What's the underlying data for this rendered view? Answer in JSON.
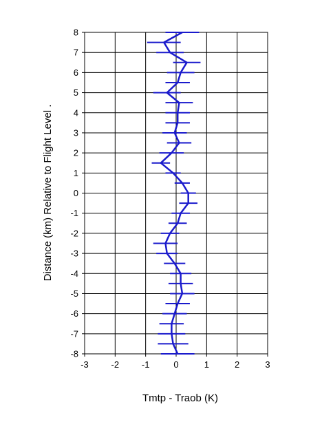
{
  "chart_data": {
    "type": "line",
    "xlabel": "Tmtp - Traob (K)",
    "ylabel": "Distance  (km) Relative to Flight Level .",
    "xlim": [
      -3,
      3
    ],
    "ylim": [
      -8,
      8
    ],
    "x_ticks": [
      "-3",
      "-2",
      "-1",
      "0",
      "1",
      "2",
      "3"
    ],
    "y_ticks": [
      "8",
      "7",
      "6",
      "5",
      "4",
      "3",
      "2",
      "1",
      "0",
      "-1",
      "-2",
      "-3",
      "-4",
      "-5",
      "-6",
      "-7",
      "-8"
    ],
    "grid": true,
    "line_color": "#1a1acc",
    "series": [
      {
        "points": [
          {
            "y": 8.0,
            "x": 0.2,
            "err": 0.55
          },
          {
            "y": 7.5,
            "x": -0.4,
            "err": 0.55
          },
          {
            "y": 7.0,
            "x": -0.2,
            "err": 0.45
          },
          {
            "y": 6.5,
            "x": 0.35,
            "err": 0.45
          },
          {
            "y": 6.0,
            "x": 0.15,
            "err": 0.45
          },
          {
            "y": 5.5,
            "x": 0.05,
            "err": 0.4
          },
          {
            "y": 5.0,
            "x": -0.3,
            "err": 0.45
          },
          {
            "y": 4.5,
            "x": 0.1,
            "err": 0.45
          },
          {
            "y": 4.0,
            "x": 0.05,
            "err": 0.4
          },
          {
            "y": 3.5,
            "x": 0.05,
            "err": 0.4
          },
          {
            "y": 3.0,
            "x": -0.05,
            "err": 0.4
          },
          {
            "y": 2.5,
            "x": 0.1,
            "err": 0.4
          },
          {
            "y": 2.0,
            "x": -0.15,
            "err": 0.4
          },
          {
            "y": 1.5,
            "x": -0.5,
            "err": 0.3
          },
          {
            "y": 1.0,
            "x": -0.1,
            "err": 0.25
          },
          {
            "y": 0.5,
            "x": 0.2,
            "err": 0.25
          },
          {
            "y": 0.0,
            "x": 0.4,
            "err": 0.25
          },
          {
            "y": -0.5,
            "x": 0.4,
            "err": 0.3
          },
          {
            "y": -1.0,
            "x": 0.15,
            "err": 0.3
          },
          {
            "y": -1.5,
            "x": 0.05,
            "err": 0.3
          },
          {
            "y": -2.0,
            "x": -0.2,
            "err": 0.3
          },
          {
            "y": -2.5,
            "x": -0.35,
            "err": 0.4
          },
          {
            "y": -3.0,
            "x": -0.3,
            "err": 0.35
          },
          {
            "y": -3.5,
            "x": -0.05,
            "err": 0.35
          },
          {
            "y": -4.0,
            "x": 0.15,
            "err": 0.35
          },
          {
            "y": -4.5,
            "x": 0.15,
            "err": 0.4
          },
          {
            "y": -5.0,
            "x": 0.2,
            "err": 0.4
          },
          {
            "y": -5.5,
            "x": 0.05,
            "err": 0.4
          },
          {
            "y": -6.0,
            "x": -0.05,
            "err": 0.4
          },
          {
            "y": -6.5,
            "x": -0.15,
            "err": 0.4
          },
          {
            "y": -7.0,
            "x": -0.15,
            "err": 0.45
          },
          {
            "y": -7.5,
            "x": -0.1,
            "err": 0.5
          },
          {
            "y": -8.0,
            "x": 0.05,
            "err": 0.55
          }
        ]
      }
    ]
  }
}
